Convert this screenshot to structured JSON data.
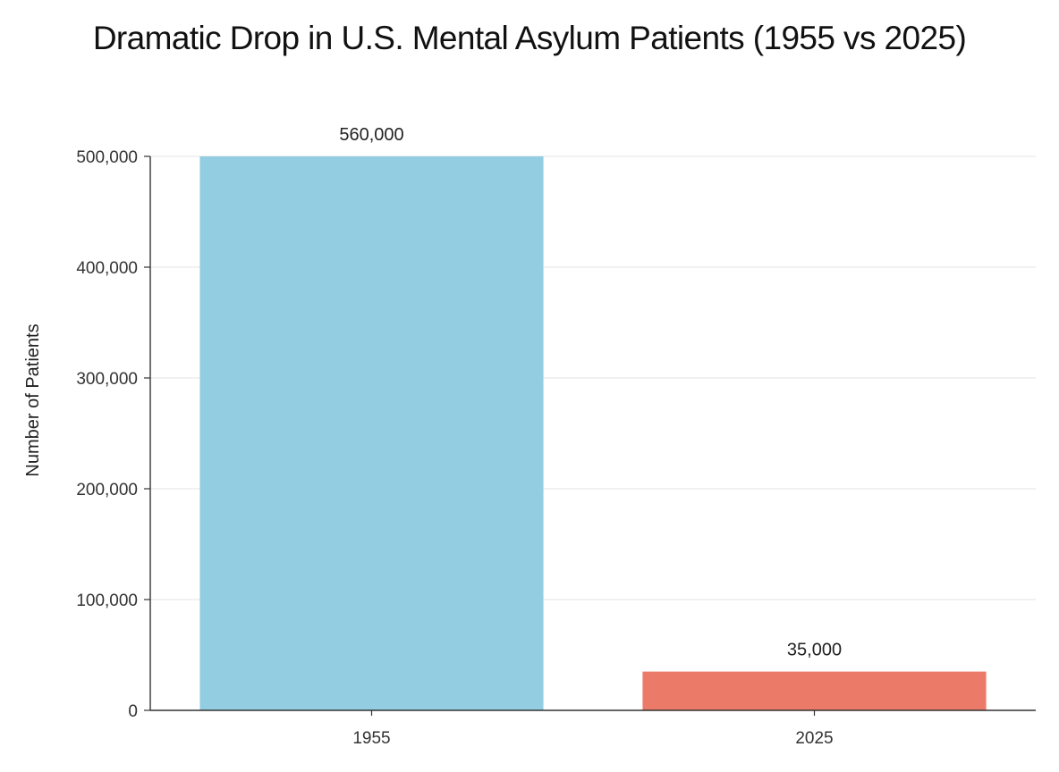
{
  "chart_data": {
    "type": "bar",
    "title": "Dramatic Drop in U.S. Mental Asylum Patients (1955 vs 2025)",
    "xlabel": "",
    "ylabel": "Number of Patients",
    "categories": [
      "1955",
      "2025"
    ],
    "values": [
      560000,
      35000
    ],
    "data_labels": [
      "560,000",
      "35,000"
    ],
    "bar_colors": [
      "#93cde2",
      "#ec7a69"
    ],
    "ylim": [
      0,
      500000
    ],
    "yticks": [
      0,
      100000,
      200000,
      300000,
      400000,
      500000
    ],
    "ytick_labels": [
      "0",
      "100,000",
      "200,000",
      "300,000",
      "400,000",
      "500,000"
    ],
    "grid": true,
    "legend": "none"
  }
}
